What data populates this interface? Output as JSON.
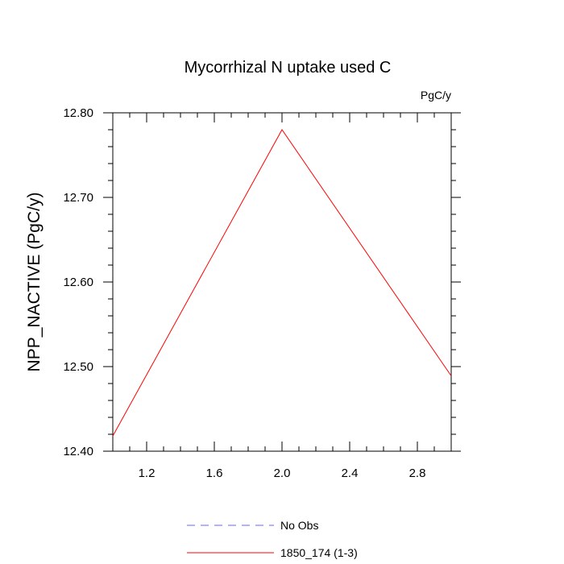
{
  "chart_data": {
    "type": "line",
    "title": "Mycorrhizal N uptake used C",
    "units_label": "PgC/y",
    "xlabel": "",
    "ylabel": "NPP_NACTIVE  (PgC/y)",
    "xlim": [
      1.0,
      3.0
    ],
    "ylim": [
      12.4,
      12.8
    ],
    "x_ticks": [
      1.2,
      1.6,
      2.0,
      2.4,
      2.8
    ],
    "x_tick_labels": [
      "1.2",
      "1.6",
      "2.0",
      "2.4",
      "2.8"
    ],
    "y_ticks": [
      12.4,
      12.5,
      12.6,
      12.7,
      12.8
    ],
    "y_tick_labels": [
      "12.40",
      "12.50",
      "12.60",
      "12.70",
      "12.80"
    ],
    "grid": false,
    "legend_position": "bottom",
    "series": [
      {
        "name": "No Obs",
        "color": "#6666ff",
        "dash": "dashed",
        "x": [],
        "y": []
      },
      {
        "name": "1850_174 (1-3)",
        "color": "#ff0000",
        "dash": "solid",
        "x": [
          1.0,
          2.0,
          3.0
        ],
        "y": [
          12.418,
          12.78,
          12.489
        ]
      }
    ]
  }
}
